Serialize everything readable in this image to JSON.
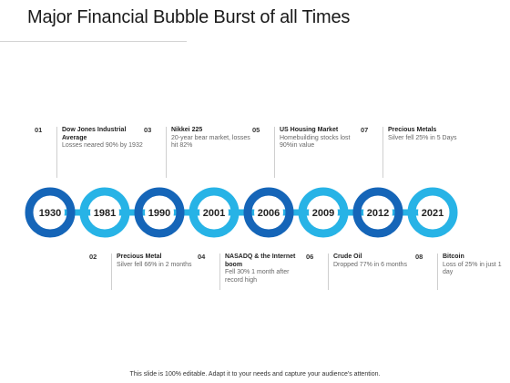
{
  "title": "Major Financial Bubble Burst of all Times",
  "colors": {
    "dark": "#1565b8",
    "light": "#27b3e6",
    "text": "#1a1a1a"
  },
  "years": [
    "1930",
    "1981",
    "1990",
    "2001",
    "2006",
    "2009",
    "2012",
    "2021"
  ],
  "events_top": [
    {
      "num": "01",
      "head": "Dow Jones Industrial Average",
      "desc": "Losses neared 90% by 1932"
    },
    {
      "num": "03",
      "head": "Nikkei 225",
      "desc": "20-year bear market, losses hit 82%"
    },
    {
      "num": "05",
      "head": "US Housing Market",
      "desc": "Homebuilding stocks lost 90%in value"
    },
    {
      "num": "07",
      "head": "Precious Metals",
      "desc": "Silver fell 25% in 5 Days"
    }
  ],
  "events_bottom": [
    {
      "num": "02",
      "head": "Precious Metal",
      "desc": "Silver fell 66% in 2 months"
    },
    {
      "num": "04",
      "head": "NASADQ & the Internet boom",
      "desc": "Fell 30% 1 month after record high"
    },
    {
      "num": "06",
      "head": "Crude Oil",
      "desc": "Dropped 77% in 6 months"
    },
    {
      "num": "08",
      "head": "Bitcoin",
      "desc": "Loss of 25% in just 1 day"
    }
  ],
  "footer": "This slide is 100% editable. Adapt it to your needs and capture your audience's attention."
}
